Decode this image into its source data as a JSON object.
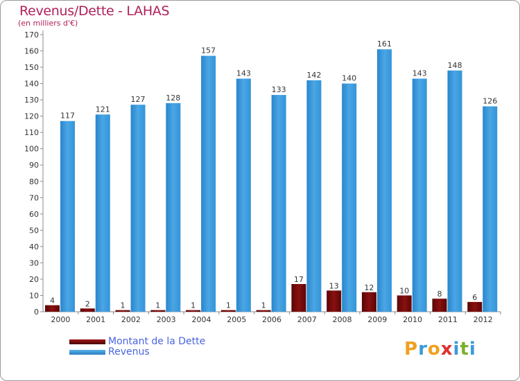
{
  "title": "Revenus/Dette - LAHAS",
  "subtitle": "(en milliers d'€)",
  "logo": {
    "text": "Proxiti",
    "letters": [
      {
        "ch": "P",
        "color": "#f0a020"
      },
      {
        "ch": "r",
        "color": "#3a9ad8"
      },
      {
        "ch": "o",
        "color": "#f0a020"
      },
      {
        "ch": "x",
        "color": "#e03030"
      },
      {
        "ch": "i",
        "color": "#3a9ad8"
      },
      {
        "ch": "t",
        "color": "#7ab030"
      },
      {
        "ch": "i",
        "color": "#3a9ad8"
      }
    ]
  },
  "legend": [
    {
      "label": "Montant de la Dette",
      "color": "#7a0a0a"
    },
    {
      "label": "Revenus",
      "color": "#3a9ad8"
    }
  ],
  "chart_data": {
    "type": "bar",
    "title": "Revenus/Dette - LAHAS",
    "subtitle": "(en milliers d'€)",
    "categories": [
      "2000",
      "2001",
      "2002",
      "2003",
      "2004",
      "2005",
      "2006",
      "2007",
      "2008",
      "2009",
      "2010",
      "2011",
      "2012"
    ],
    "series": [
      {
        "name": "Montant de la Dette",
        "color": "#7a0a0a",
        "values": [
          4,
          2,
          1,
          1,
          1,
          1,
          1,
          17,
          13,
          12,
          10,
          8,
          6
        ]
      },
      {
        "name": "Revenus",
        "color": "#3a9ad8",
        "values": [
          117,
          121,
          127,
          128,
          157,
          143,
          133,
          142,
          140,
          161,
          143,
          148,
          126
        ]
      }
    ],
    "ylim": [
      0,
      170
    ],
    "yticks": [
      0,
      10,
      20,
      30,
      40,
      50,
      60,
      70,
      80,
      90,
      100,
      110,
      120,
      130,
      140,
      150,
      160,
      170
    ],
    "grid": false,
    "legend_position": "bottom-left"
  }
}
